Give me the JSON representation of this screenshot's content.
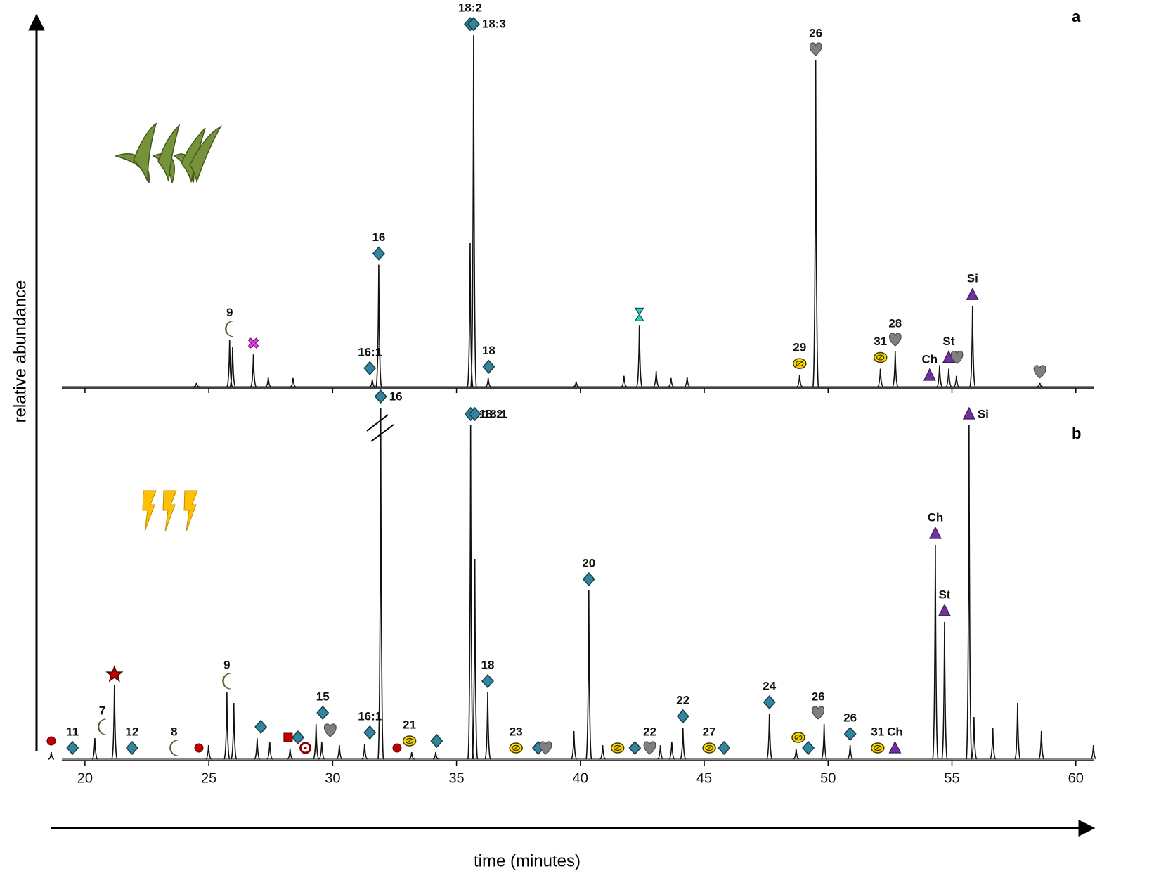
{
  "chart_data": [
    {
      "type": "chromatogram",
      "panel_label": "a",
      "xlim": [
        18.5,
        61
      ],
      "xticks": [
        20,
        25,
        30,
        35,
        40,
        45,
        50,
        55,
        60
      ],
      "tick_labels": false,
      "ylim": [
        0,
        100
      ],
      "color": "#111111",
      "x": [
        24.5,
        25.84,
        25.96,
        26.8,
        27.4,
        28.4,
        31.6,
        31.86,
        35.55,
        35.69,
        36.28,
        39.83,
        41.76,
        42.38,
        43.06,
        43.66,
        44.31,
        48.85,
        49.5,
        52.11,
        52.71,
        54.5,
        54.87,
        55.18,
        55.83,
        58.55
      ],
      "values": [
        1,
        13,
        11,
        9,
        2.5,
        2.4,
        2,
        34,
        40,
        98,
        2.4,
        1.4,
        3,
        17,
        4.3,
        2.4,
        2.7,
        3.3,
        91,
        5,
        10,
        6,
        5,
        3,
        22.5,
        1
      ],
      "annotations": [
        {
          "x": 25.84,
          "marker": "crescent",
          "label": "9"
        },
        {
          "x": 26.8,
          "marker": "cross"
        },
        {
          "x": 31.5,
          "marker": "diamond",
          "label": "16:1"
        },
        {
          "x": 31.86,
          "marker": "diamond",
          "label": "16"
        },
        {
          "x": 35.55,
          "marker": "diamond",
          "label": "18:2"
        },
        {
          "x": 35.69,
          "marker": "diamond",
          "label": "18:3",
          "side": "right"
        },
        {
          "x": 36.3,
          "marker": "diamond",
          "label": "18"
        },
        {
          "x": 42.38,
          "marker": "hourglass"
        },
        {
          "x": 48.85,
          "marker": "hatch",
          "label": "29"
        },
        {
          "x": 49.5,
          "marker": "heart",
          "label": "26"
        },
        {
          "x": 52.11,
          "marker": "hatch",
          "label": "31"
        },
        {
          "x": 52.71,
          "marker": "heart",
          "label": "28"
        },
        {
          "x": 54.1,
          "marker": "triangle",
          "label": "Ch"
        },
        {
          "x": 54.87,
          "marker": "triangle",
          "label": "St"
        },
        {
          "x": 55.2,
          "marker": "heart"
        },
        {
          "x": 55.83,
          "marker": "triangle",
          "label": "Si"
        },
        {
          "x": 58.55,
          "marker": "heart"
        }
      ]
    },
    {
      "type": "chromatogram",
      "panel_label": "b",
      "xlim": [
        18.5,
        61
      ],
      "xticks": [
        20,
        25,
        30,
        35,
        40,
        45,
        50,
        55,
        60
      ],
      "tick_labels": true,
      "ylim": [
        0,
        100
      ],
      "color": "#111111",
      "x": [
        18.64,
        20.4,
        21.19,
        24.99,
        25.73,
        26.01,
        26.95,
        27.46,
        28.28,
        29.33,
        29.56,
        30.27,
        31.29,
        31.94,
        33.19,
        34.16,
        35.57,
        35.74,
        36.26,
        39.74,
        40.34,
        40.9,
        43.23,
        43.69,
        44.14,
        47.63,
        48.71,
        49.84,
        50.89,
        54.33,
        54.7,
        55.69,
        55.89,
        56.65,
        57.65,
        58.61,
        60.71
      ],
      "values": [
        2,
        6,
        21,
        4,
        19,
        16,
        6,
        5,
        3,
        10,
        5,
        4,
        4.4,
        100,
        2,
        2,
        95,
        57,
        19,
        8,
        48,
        4,
        4,
        5,
        9,
        13,
        3,
        10,
        4,
        61,
        39,
        95,
        12,
        9,
        16,
        8,
        4
      ],
      "annotations": [
        {
          "x": 18.64,
          "marker": "dot"
        },
        {
          "x": 19.5,
          "marker": "diamond",
          "label": "11"
        },
        {
          "x": 20.7,
          "marker": "crescent",
          "label": "7"
        },
        {
          "x": 21.19,
          "marker": "star"
        },
        {
          "x": 21.9,
          "marker": "diamond",
          "label": "12"
        },
        {
          "x": 23.6,
          "marker": "crescent",
          "label": "8"
        },
        {
          "x": 24.6,
          "marker": "dot"
        },
        {
          "x": 25.73,
          "marker": "crescent",
          "label": "9"
        },
        {
          "x": 27.1,
          "marker": "diamond"
        },
        {
          "x": 28.2,
          "marker": "square"
        },
        {
          "x": 28.6,
          "marker": "diamond"
        },
        {
          "x": 28.9,
          "marker": "ring"
        },
        {
          "x": 29.6,
          "marker": "diamond",
          "label": "15"
        },
        {
          "x": 29.9,
          "marker": "heart"
        },
        {
          "x": 31.5,
          "marker": "diamond",
          "label": "16:1"
        },
        {
          "x": 31.94,
          "marker": "diamond",
          "label": "16",
          "side": "right"
        },
        {
          "x": 32.6,
          "marker": "dot"
        },
        {
          "x": 33.1,
          "marker": "hatch",
          "label": "21"
        },
        {
          "x": 34.2,
          "marker": "diamond"
        },
        {
          "x": 35.57,
          "marker": "diamond",
          "label": "18:2",
          "side": "right"
        },
        {
          "x": 35.74,
          "marker": "diamond",
          "label": "18:1",
          "side": "right"
        },
        {
          "x": 36.26,
          "marker": "diamond",
          "label": "18"
        },
        {
          "x": 37.4,
          "marker": "hatch",
          "label": "23"
        },
        {
          "x": 38.3,
          "marker": "diamond"
        },
        {
          "x": 38.6,
          "marker": "heart"
        },
        {
          "x": 40.34,
          "marker": "diamond",
          "label": "20"
        },
        {
          "x": 41.5,
          "marker": "hatch"
        },
        {
          "x": 42.2,
          "marker": "diamond"
        },
        {
          "x": 42.8,
          "marker": "heart",
          "label": "22"
        },
        {
          "x": 44.14,
          "marker": "diamond",
          "label": "22"
        },
        {
          "x": 45.2,
          "marker": "hatch",
          "label": "27"
        },
        {
          "x": 45.8,
          "marker": "diamond"
        },
        {
          "x": 47.63,
          "marker": "diamond",
          "label": "24"
        },
        {
          "x": 48.8,
          "marker": "hatch"
        },
        {
          "x": 49.2,
          "marker": "diamond"
        },
        {
          "x": 49.6,
          "marker": "heart",
          "label": "26"
        },
        {
          "x": 50.89,
          "marker": "diamond",
          "label": "26"
        },
        {
          "x": 52.0,
          "marker": "hatch",
          "label": "31"
        },
        {
          "x": 52.7,
          "marker": "triangle",
          "label": "Ch"
        },
        {
          "x": 54.33,
          "marker": "triangle",
          "label": "Ch"
        },
        {
          "x": 54.7,
          "marker": "triangle",
          "label": "St"
        },
        {
          "x": 55.69,
          "marker": "triangle",
          "label": "Si",
          "side": "right"
        }
      ]
    }
  ],
  "y_axis_label": "relative abundance",
  "x_axis_label": "time (minutes)"
}
